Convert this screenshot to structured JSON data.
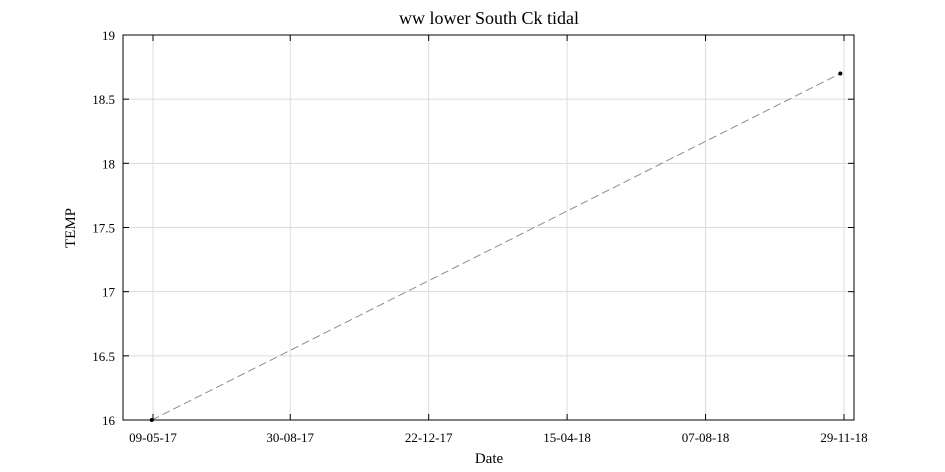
{
  "chart_data": {
    "type": "line",
    "title": "ww lower South Ck tidal",
    "xlabel": "Date",
    "ylabel": "TEMP",
    "x_ticks": [
      "09-05-17",
      "30-08-17",
      "22-12-17",
      "15-04-18",
      "07-08-18",
      "29-11-18"
    ],
    "y_ticks": [
      "16",
      "16.5",
      "17",
      "17.5",
      "18",
      "18.5",
      "19"
    ],
    "ylim": [
      16,
      19
    ],
    "grid": true,
    "series": [
      {
        "line_style": "dashed",
        "line_color": "#8c8c8c",
        "marker_color": "#000000",
        "points": [
          {
            "x": "08-05-17",
            "y": 16.0
          },
          {
            "x": "26-11-18",
            "y": 18.7
          }
        ]
      }
    ]
  }
}
